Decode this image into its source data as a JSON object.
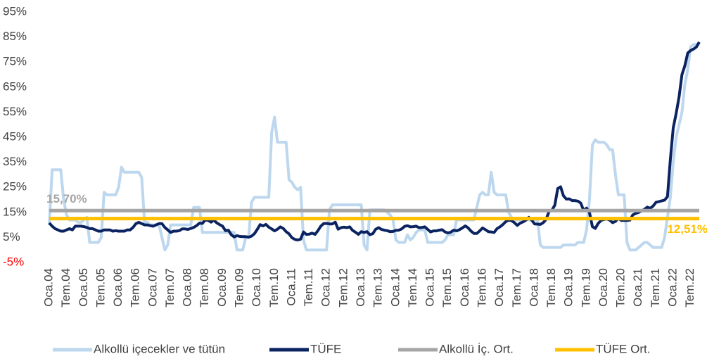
{
  "chart_data": {
    "type": "line",
    "categories": [
      "Oca.04",
      null,
      null,
      null,
      null,
      null,
      "Tem.04",
      null,
      null,
      null,
      null,
      null,
      "Oca.05",
      null,
      null,
      null,
      null,
      null,
      "Tem.05",
      null,
      null,
      null,
      null,
      null,
      "Oca.06",
      null,
      null,
      null,
      null,
      null,
      "Tem.06",
      null,
      null,
      null,
      null,
      null,
      "Oca.07",
      null,
      null,
      null,
      null,
      null,
      "Tem.07",
      null,
      null,
      null,
      null,
      null,
      "Oca.08",
      null,
      null,
      null,
      null,
      null,
      "Tem.08",
      null,
      null,
      null,
      null,
      null,
      "Oca.09",
      null,
      null,
      null,
      null,
      null,
      "Tem.09",
      null,
      null,
      null,
      null,
      null,
      "Oca.10",
      null,
      null,
      null,
      null,
      null,
      "Tem.10",
      null,
      null,
      null,
      null,
      null,
      "Oca.11",
      null,
      null,
      null,
      null,
      null,
      "Tem.11",
      null,
      null,
      null,
      null,
      null,
      "Oca.12",
      null,
      null,
      null,
      null,
      null,
      "Tem.12",
      null,
      null,
      null,
      null,
      null,
      "Oca.13",
      null,
      null,
      null,
      null,
      null,
      "Tem.13",
      null,
      null,
      null,
      null,
      null,
      "Oca.14",
      null,
      null,
      null,
      null,
      null,
      "Tem.14",
      null,
      null,
      null,
      null,
      null,
      "Oca.15",
      null,
      null,
      null,
      null,
      null,
      "Tem.15",
      null,
      null,
      null,
      null,
      null,
      "Oca.16",
      null,
      null,
      null,
      null,
      null,
      "Tem.16",
      null,
      null,
      null,
      null,
      null,
      "Oca.17",
      null,
      null,
      null,
      null,
      null,
      "Tem.17",
      null,
      null,
      null,
      null,
      null,
      "Oca.18",
      null,
      null,
      null,
      null,
      null,
      "Tem.18",
      null,
      null,
      null,
      null,
      null,
      "Oca.19",
      null,
      null,
      null,
      null,
      null,
      "Tem.19",
      null,
      null,
      null,
      null,
      null,
      "Oca.20",
      null,
      null,
      null,
      null,
      null,
      "Tem.20",
      null,
      null,
      null,
      null,
      null,
      "Oca.21",
      null,
      null,
      null,
      null,
      null,
      "Tem.21",
      null,
      null,
      null,
      null,
      null,
      "Oca.22",
      null,
      null,
      null,
      null,
      null,
      "Tem.22",
      null,
      null,
      null
    ],
    "series": [
      {
        "name": "Alkollü içecekler ve tütün",
        "color": "#bdd7ee",
        "values": [
          10,
          32,
          32,
          32,
          32,
          20,
          14,
          12,
          12,
          12,
          11,
          11,
          12,
          13,
          3,
          3,
          3,
          3,
          5,
          23,
          22,
          22,
          22,
          22,
          25,
          33,
          31,
          31,
          31,
          31,
          31,
          31,
          29,
          11,
          11,
          10,
          10,
          10,
          10,
          5,
          0,
          2,
          10,
          10,
          10,
          10,
          10,
          10,
          10,
          10,
          17,
          17,
          17,
          7,
          7,
          7,
          7,
          7,
          7,
          7,
          7,
          7,
          7,
          7,
          7,
          0,
          0,
          0,
          5,
          5,
          19,
          21,
          21,
          21,
          21,
          21,
          21,
          47,
          53,
          43,
          43,
          43,
          43,
          28,
          27,
          25,
          24,
          25,
          4,
          0,
          0,
          0,
          0,
          0,
          0,
          0,
          0,
          16,
          18,
          18,
          18,
          18,
          18,
          18,
          18,
          18,
          18,
          18,
          18,
          2,
          0,
          16,
          16,
          16,
          16,
          16,
          16,
          15,
          14,
          12,
          4,
          3,
          3,
          3,
          6,
          4,
          5,
          7,
          8,
          8,
          8,
          3,
          3,
          3,
          3,
          3,
          3,
          4,
          6,
          6,
          6,
          12,
          12,
          12,
          12,
          12,
          12,
          12,
          17,
          22,
          23,
          22,
          22,
          31,
          23,
          22,
          22,
          22,
          22,
          15,
          13,
          12,
          12,
          12,
          12,
          12,
          12,
          12,
          12,
          12,
          2,
          1,
          1,
          1,
          1,
          1,
          1,
          1,
          2,
          2,
          2,
          2,
          2,
          3,
          3,
          3,
          8,
          20,
          42,
          44,
          43,
          43,
          43,
          42,
          40,
          40,
          30,
          22,
          22,
          22,
          3,
          0,
          0,
          0,
          1,
          2,
          3,
          3,
          2,
          1,
          1,
          1,
          1,
          5,
          13,
          21,
          35,
          45,
          50,
          55,
          66,
          72,
          81,
          82,
          82,
          82
        ]
      },
      {
        "name": "TÜFE",
        "color": "#0b2360",
        "values": [
          10.8,
          9.5,
          8.5,
          8,
          7.5,
          7.5,
          8,
          8.5,
          8,
          9.5,
          9.5,
          9.5,
          9.3,
          9,
          8.5,
          8.5,
          8,
          7.5,
          7.5,
          8,
          8,
          8,
          7.5,
          7.7,
          7.5,
          7.5,
          7.5,
          8,
          8,
          9,
          10.5,
          11,
          10.5,
          10,
          10,
          9.7,
          9.5,
          10,
          10.5,
          10.5,
          9,
          8,
          7,
          7.5,
          7.5,
          7.7,
          8.4,
          8.4,
          8.2,
          8.6,
          9,
          9.7,
          10.7,
          10.6,
          12,
          11.8,
          11.1,
          11.9,
          10.8,
          10.1,
          9.5,
          7.7,
          7.9,
          6.1,
          5.2,
          5.7,
          5.4,
          5.3,
          5.3,
          5.1,
          5.5,
          6.5,
          8.2,
          10.1,
          9.6,
          10.2,
          9.1,
          8.4,
          7.6,
          8.3,
          9.2,
          8.6,
          7.3,
          6.4,
          4.9,
          4.2,
          4,
          4.3,
          7.2,
          6.2,
          6.3,
          6.7,
          6.2,
          7.7,
          9.5,
          10.5,
          10.6,
          10.4,
          10.4,
          11.1,
          8.3,
          8.9,
          9.1,
          8.9,
          9.2,
          7.8,
          7.1,
          6.2,
          7.3,
          7,
          7.3,
          6.1,
          6.5,
          8.3,
          8.9,
          8.2,
          7.9,
          7.7,
          7.3,
          7.4,
          7.8,
          7.9,
          8.4,
          9.4,
          9.7,
          9.2,
          9.3,
          9.5,
          8.9,
          9,
          9.2,
          8.2,
          7.2,
          7.6,
          7.6,
          7.9,
          8.1,
          7.2,
          6.8,
          7.1,
          7.9,
          7.6,
          8.1,
          8.8,
          9.6,
          8.8,
          7.5,
          6.6,
          6.6,
          7.6,
          8.8,
          8.1,
          7.3,
          7.2,
          7,
          8.5,
          9.2,
          10.1,
          11.3,
          11.9,
          11.7,
          10.9,
          9.8,
          10.7,
          11.2,
          11.9,
          13,
          11.9,
          10.4,
          10.3,
          10.2,
          10.9,
          12.2,
          15.4,
          15.9,
          17.9,
          24.5,
          25.2,
          21.6,
          20.3,
          20.4,
          19.7,
          19.7,
          19.5,
          18.7,
          15.7,
          16.7,
          15,
          9.3,
          8.6,
          10.6,
          11.8,
          12.2,
          12.4,
          11.9,
          10.9,
          11.4,
          12.6,
          11.8,
          11.8,
          11.8,
          11.9,
          14,
          14.6,
          15,
          15.6,
          16.2,
          17.1,
          16.6,
          17.5,
          19,
          19.3,
          19.6,
          19.9,
          21.3,
          36.1,
          48.7,
          54.4,
          61.1,
          70,
          73.5,
          78.6,
          79.6,
          80.2,
          81,
          83
        ]
      },
      {
        "name": "Alkollü İç. Ort.",
        "color": "#a5a5a5",
        "value": 15.7,
        "value_label": "15,70%"
      },
      {
        "name": "TÜFE Ort.",
        "color": "#ffc000",
        "value": 12.51,
        "value_label": "12,51%"
      }
    ],
    "ylim": [
      -5,
      95
    ],
    "yticks": [
      {
        "value": -5,
        "label": "-5%"
      },
      {
        "value": 5,
        "label": "5%"
      },
      {
        "value": 15,
        "label": "15%"
      },
      {
        "value": 25,
        "label": "25%"
      },
      {
        "value": 35,
        "label": "35%"
      },
      {
        "value": 45,
        "label": "45%"
      },
      {
        "value": 55,
        "label": "55%"
      },
      {
        "value": 65,
        "label": "65%"
      },
      {
        "value": 75,
        "label": "75%"
      },
      {
        "value": 85,
        "label": "85%"
      },
      {
        "value": 95,
        "label": "95%"
      }
    ],
    "negative_tick_color": "#ff0000",
    "grid": false,
    "legend": "bottom"
  }
}
